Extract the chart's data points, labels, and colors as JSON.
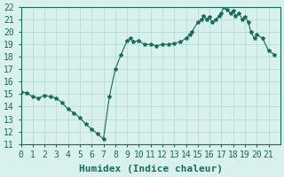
{
  "xlabel": "Humidex (Indice chaleur)",
  "ylabel": "",
  "xlim": [
    0,
    22
  ],
  "ylim": [
    11,
    22
  ],
  "xticks": [
    0,
    1,
    2,
    3,
    4,
    5,
    6,
    7,
    8,
    9,
    10,
    11,
    12,
    13,
    14,
    15,
    16,
    17,
    18,
    19,
    20,
    21
  ],
  "yticks": [
    11,
    12,
    13,
    14,
    15,
    16,
    17,
    18,
    19,
    20,
    21,
    22
  ],
  "x": [
    0,
    0.5,
    1,
    1.5,
    2,
    2.5,
    3,
    3.5,
    4,
    4.5,
    5,
    5.5,
    6,
    6.5,
    7,
    7.5,
    8,
    8.5,
    9,
    9.3,
    9.5,
    10,
    10.5,
    11,
    11.5,
    12,
    12.5,
    13,
    13.5,
    14,
    14.3,
    14.5,
    15,
    15.3,
    15.5,
    15.8,
    16,
    16.2,
    16.5,
    16.8,
    17,
    17.2,
    17.5,
    17.8,
    18,
    18.2,
    18.5,
    18.8,
    19,
    19.3,
    19.5,
    19.8,
    20,
    20.5,
    21,
    21.5
  ],
  "y": [
    15.2,
    15.1,
    14.8,
    14.7,
    14.9,
    14.8,
    14.7,
    14.3,
    13.8,
    13.5,
    13.1,
    12.6,
    12.2,
    11.8,
    11.4,
    14.8,
    17.0,
    18.2,
    19.3,
    19.5,
    19.2,
    19.3,
    19.0,
    19.0,
    18.9,
    19.0,
    19.0,
    19.1,
    19.2,
    19.5,
    19.8,
    20.0,
    20.8,
    21.0,
    21.3,
    21.0,
    21.2,
    20.8,
    21.0,
    21.3,
    21.5,
    22.0,
    21.8,
    21.5,
    21.7,
    21.3,
    21.5,
    21.0,
    21.2,
    20.8,
    20.0,
    19.5,
    19.8,
    19.5,
    18.5,
    18.2
  ],
  "line_color": "#1a6b5a",
  "marker": "*",
  "marker_size": 3,
  "bg_color": "#d8f0ee",
  "grid_color": "#b0d8d4",
  "tick_label_color": "#1a6b5a",
  "xlabel_color": "#1a6b5a",
  "font_size": 7,
  "xlabel_fontsize": 8
}
